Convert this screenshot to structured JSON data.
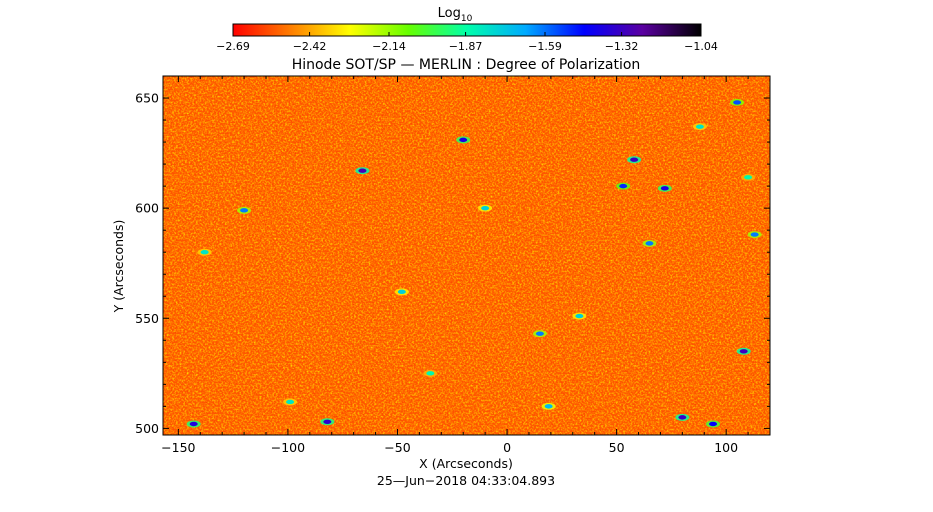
{
  "chart_data": {
    "type": "heatmap",
    "title": "Hinode SOT/SP — MERLIN : Degree of Polarization",
    "xlabel": "X (Arcseconds)",
    "ylabel": "Y (Arcseconds)",
    "timestamp": "25—Jun−2018 04:33:04.893",
    "xlim": [
      -157,
      120
    ],
    "ylim": [
      497,
      660
    ],
    "x_ticks": [
      -150,
      -100,
      -50,
      0,
      50,
      100
    ],
    "x_tick_labels": [
      "−150",
      "−100",
      "−50",
      "0",
      "50",
      "100"
    ],
    "y_ticks": [
      500,
      550,
      600,
      650
    ],
    "y_tick_labels": [
      "500",
      "550",
      "600",
      "650"
    ],
    "colorbar": {
      "label_main": "Log",
      "label_sub": "10",
      "scale": "log10",
      "range": [
        -2.69,
        -1.04
      ],
      "ticks": [
        -2.69,
        -2.42,
        -2.14,
        -1.87,
        -1.59,
        -1.32,
        -1.04
      ],
      "tick_labels": [
        "−2.69",
        "−2.42",
        "−2.14",
        "−1.87",
        "−1.59",
        "−1.32",
        "−1.04"
      ],
      "colors": [
        "#ff0000",
        "#ff7f00",
        "#ffff00",
        "#66ff00",
        "#00ffaa",
        "#00aaff",
        "#0000ff",
        "#5a00a0",
        "#000000"
      ]
    },
    "background_level": -2.55,
    "features": [
      {
        "x": -82,
        "y": 503,
        "v": -1.35
      },
      {
        "x": -143,
        "y": 502,
        "v": -1.38
      },
      {
        "x": -20,
        "y": 631,
        "v": -1.4
      },
      {
        "x": -66,
        "y": 617,
        "v": -1.3
      },
      {
        "x": 58,
        "y": 622,
        "v": -1.32
      },
      {
        "x": 108,
        "y": 535,
        "v": -1.32
      },
      {
        "x": 80,
        "y": 505,
        "v": -1.33
      },
      {
        "x": 94,
        "y": 502,
        "v": -1.45
      },
      {
        "x": 72,
        "y": 609,
        "v": -1.4
      },
      {
        "x": 53,
        "y": 610,
        "v": -1.5
      },
      {
        "x": 105,
        "y": 648,
        "v": -1.55
      },
      {
        "x": 113,
        "y": 588,
        "v": -1.6
      },
      {
        "x": 15,
        "y": 543,
        "v": -1.6
      },
      {
        "x": -120,
        "y": 599,
        "v": -1.6
      },
      {
        "x": 65,
        "y": 584,
        "v": -1.6
      },
      {
        "x": -48,
        "y": 562,
        "v": -1.75
      },
      {
        "x": 33,
        "y": 551,
        "v": -1.75
      },
      {
        "x": -10,
        "y": 600,
        "v": -1.75
      },
      {
        "x": 19,
        "y": 510,
        "v": -1.7
      },
      {
        "x": -138,
        "y": 580,
        "v": -1.8
      },
      {
        "x": 88,
        "y": 637,
        "v": -1.8
      },
      {
        "x": -99,
        "y": 512,
        "v": -1.8
      },
      {
        "x": -35,
        "y": 525,
        "v": -1.85
      },
      {
        "x": 110,
        "y": 614,
        "v": -1.85
      }
    ]
  }
}
